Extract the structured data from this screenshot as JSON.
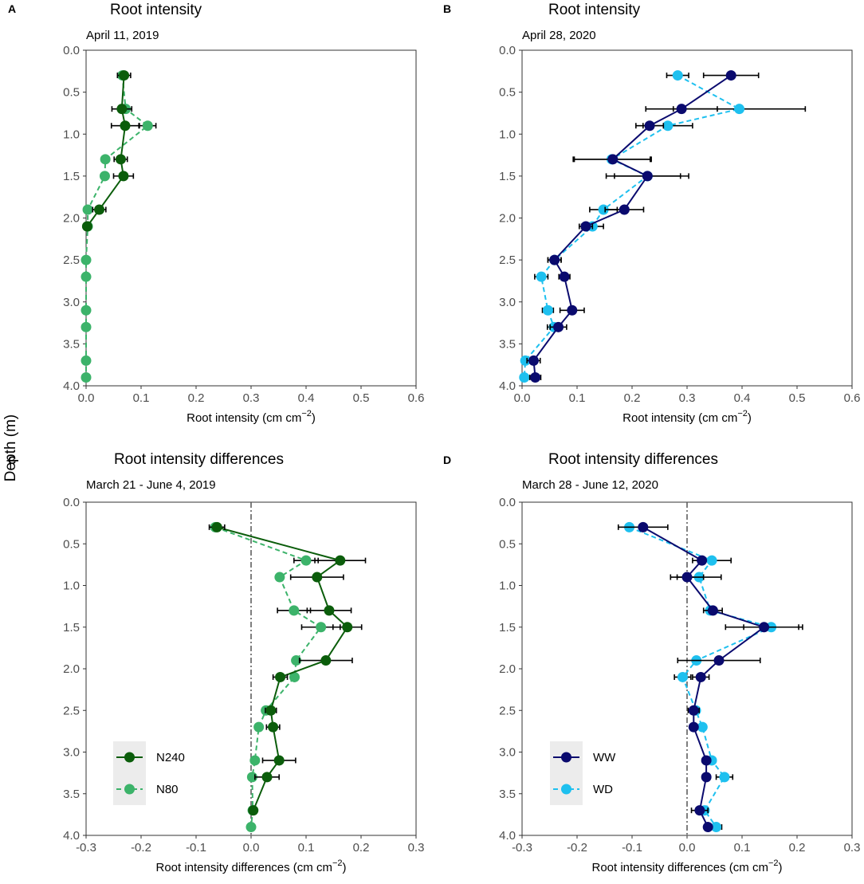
{
  "figure": {
    "shared_ylabel": "Depth (m)",
    "colors": {
      "N240": "#0b5d0b",
      "N80": "#3cb36a",
      "WW": "#0a0a6e",
      "WD": "#1ec0ef",
      "legend_bg": "#ececec",
      "frame": "#333333",
      "zero_line": "#555555"
    }
  },
  "chart_data": [
    {
      "id": "A",
      "letter": "A",
      "type": "line",
      "title": "Root intensity",
      "subtitle": "April 11, 2019",
      "xlabel": "Root intensity (cm cm",
      "xlabel_sup": "−2",
      "xlabel_close": ")",
      "xlim": [
        0,
        0.6
      ],
      "ylim": [
        0,
        4.0
      ],
      "xticks": [
        "0.0",
        "0.1",
        "0.2",
        "0.3",
        "0.4",
        "0.5",
        "0.6"
      ],
      "yticks": [
        "0.0",
        "0.5",
        "1.0",
        "1.5",
        "2.0",
        "2.5",
        "3.0",
        "3.5",
        "4.0"
      ],
      "zero_line": false,
      "legend": null,
      "series": [
        {
          "name": "N80",
          "color": "#3cb36a",
          "dashed": true,
          "depth": [
            0.3,
            0.7,
            0.9,
            1.3,
            1.5,
            1.9,
            2.1,
            2.5,
            2.7,
            3.1,
            3.3,
            3.7,
            3.9
          ],
          "values": [
            0.066,
            0.072,
            0.112,
            0.035,
            0.034,
            0.003,
            0.003,
            0.0,
            0.0,
            0.0,
            0.0,
            0.0,
            0.0
          ],
          "errors": [
            0.0,
            0.0,
            0.015,
            0.0,
            0.0,
            0.0,
            0.0,
            0.0,
            0.0,
            0.0,
            0.0,
            0.0,
            0.0
          ]
        },
        {
          "name": "N240",
          "color": "#0b5d0b",
          "dashed": false,
          "depth": [
            0.3,
            0.7,
            0.9,
            1.3,
            1.5,
            1.9,
            2.1
          ],
          "values": [
            0.069,
            0.065,
            0.071,
            0.063,
            0.068,
            0.024,
            0.002
          ],
          "errors": [
            0.012,
            0.018,
            0.025,
            0.012,
            0.018,
            0.012,
            0.0
          ]
        }
      ]
    },
    {
      "id": "B",
      "letter": "B",
      "type": "line",
      "title": "Root intensity",
      "subtitle": "April 28, 2020",
      "xlabel": "Root intensity (cm cm",
      "xlabel_sup": "−2",
      "xlabel_close": ")",
      "xlim": [
        0,
        0.6
      ],
      "ylim": [
        0,
        4.0
      ],
      "xticks": [
        "0.0",
        "0.1",
        "0.2",
        "0.3",
        "0.4",
        "0.5",
        "0.6"
      ],
      "yticks": [
        "0.0",
        "0.5",
        "1.0",
        "1.5",
        "2.0",
        "2.5",
        "3.0",
        "3.5",
        "4.0"
      ],
      "zero_line": false,
      "legend": null,
      "series": [
        {
          "name": "WD",
          "color": "#1ec0ef",
          "dashed": true,
          "depth": [
            0.3,
            0.7,
            0.9,
            1.3,
            1.5,
            1.9,
            2.1,
            2.5,
            2.7,
            3.1,
            3.3,
            3.7,
            3.9
          ],
          "values": [
            0.283,
            0.395,
            0.265,
            0.163,
            0.228,
            0.148,
            0.128,
            0.059,
            0.035,
            0.047,
            0.058,
            0.006,
            0.004
          ],
          "errors": [
            0.02,
            0.12,
            0.045,
            0.07,
            0.075,
            0.025,
            0.02,
            0.012,
            0.012,
            0.01,
            0.012,
            0.006,
            0.004
          ]
        },
        {
          "name": "WW",
          "color": "#0a0a6e",
          "dashed": false,
          "depth": [
            0.3,
            0.7,
            0.9,
            1.3,
            1.5,
            1.9,
            2.1,
            2.5,
            2.7,
            3.1,
            3.3,
            3.7,
            3.9
          ],
          "values": [
            0.38,
            0.29,
            0.232,
            0.165,
            0.228,
            0.186,
            0.116,
            0.059,
            0.077,
            0.091,
            0.066,
            0.021,
            0.024
          ],
          "errors": [
            0.05,
            0.065,
            0.025,
            0.07,
            0.06,
            0.035,
            0.012,
            0.012,
            0.01,
            0.022,
            0.015,
            0.012,
            0.01
          ]
        }
      ]
    },
    {
      "id": "C",
      "letter": "C",
      "type": "line",
      "title": "Root intensity differences",
      "subtitle": "March 21 - June 4, 2019",
      "xlabel": "Root intensity differences (cm cm",
      "xlabel_sup": "−2",
      "xlabel_close": ")",
      "xlim": [
        -0.3,
        0.3
      ],
      "ylim": [
        0,
        4.0
      ],
      "xticks": [
        "-0.3",
        "-0.2",
        "-0.1",
        "0.0",
        "0.1",
        "0.2",
        "0.3"
      ],
      "yticks": [
        "0.0",
        "0.5",
        "1.0",
        "1.5",
        "2.0",
        "2.5",
        "3.0",
        "3.5",
        "4.0"
      ],
      "zero_line": true,
      "legend": {
        "entries": [
          "N240",
          "N80"
        ]
      },
      "series": [
        {
          "name": "N80",
          "color": "#3cb36a",
          "dashed": true,
          "depth": [
            0.3,
            0.7,
            0.9,
            1.3,
            1.5,
            1.9,
            2.1,
            2.5,
            2.7,
            3.1,
            3.3,
            3.7,
            3.9
          ],
          "values": [
            -0.065,
            0.1,
            0.052,
            0.078,
            0.127,
            0.082,
            0.079,
            0.027,
            0.014,
            0.007,
            0.002,
            0.003,
            0.0
          ],
          "errors": [
            0.0,
            0.022,
            0.0,
            0.03,
            0.035,
            0.0,
            0.0,
            0.0,
            0.0,
            0.0,
            0.0,
            0.0,
            0.0
          ]
        },
        {
          "name": "N240",
          "color": "#0b5d0b",
          "dashed": false,
          "depth": [
            0.3,
            0.7,
            0.9,
            1.3,
            1.5,
            1.9,
            2.1,
            2.5,
            2.7,
            3.1,
            3.3,
            3.7
          ],
          "values": [
            -0.062,
            0.162,
            0.12,
            0.142,
            0.175,
            0.136,
            0.053,
            0.036,
            0.04,
            0.051,
            0.029,
            0.004
          ],
          "errors": [
            0.014,
            0.046,
            0.048,
            0.04,
            0.026,
            0.048,
            0.013,
            0.01,
            0.012,
            0.03,
            0.022,
            0.0
          ]
        }
      ]
    },
    {
      "id": "D",
      "letter": "D",
      "type": "line",
      "title": "Root intensity differences",
      "subtitle": "March 28 - June 12, 2020",
      "xlabel": "Root intensity differences (cm cm",
      "xlabel_sup": "−2",
      "xlabel_close": ")",
      "xlim": [
        -0.3,
        0.3
      ],
      "ylim": [
        0,
        4.0
      ],
      "xticks": [
        "-0.3",
        "-0.2",
        "-0.1",
        "0.0",
        "0.1",
        "0.2",
        "0.3"
      ],
      "yticks": [
        "0.0",
        "0.5",
        "1.0",
        "1.5",
        "2.0",
        "2.5",
        "3.0",
        "3.5",
        "4.0"
      ],
      "zero_line": true,
      "legend": {
        "entries": [
          "WW",
          "WD"
        ]
      },
      "series": [
        {
          "name": "WD",
          "color": "#1ec0ef",
          "dashed": true,
          "depth": [
            0.3,
            0.7,
            0.9,
            1.3,
            1.5,
            1.9,
            2.1,
            2.5,
            2.7,
            3.1,
            3.3,
            3.7,
            3.9
          ],
          "values": [
            -0.105,
            0.045,
            0.022,
            0.042,
            0.153,
            0.017,
            -0.008,
            0.016,
            0.028,
            0.045,
            0.068,
            0.032,
            0.053
          ],
          "errors": [
            0.0,
            0.035,
            0.04,
            0.0,
            0.05,
            0.0,
            0.015,
            0.0,
            0.0,
            0.0,
            0.015,
            0.0,
            0.01
          ]
        },
        {
          "name": "WW",
          "color": "#0a0a6e",
          "dashed": false,
          "depth": [
            0.3,
            0.7,
            0.9,
            1.3,
            1.5,
            1.9,
            2.1,
            2.5,
            2.7,
            3.1,
            3.3,
            3.7,
            3.9
          ],
          "values": [
            -0.08,
            0.027,
            0.0,
            0.047,
            0.14,
            0.058,
            0.025,
            0.012,
            0.012,
            0.035,
            0.035,
            0.023,
            0.038
          ],
          "errors": [
            0.045,
            0.0,
            0.03,
            0.017,
            0.07,
            0.075,
            0.015,
            0.01,
            0.0,
            0.0,
            0.0,
            0.015,
            0.0
          ]
        }
      ]
    }
  ]
}
